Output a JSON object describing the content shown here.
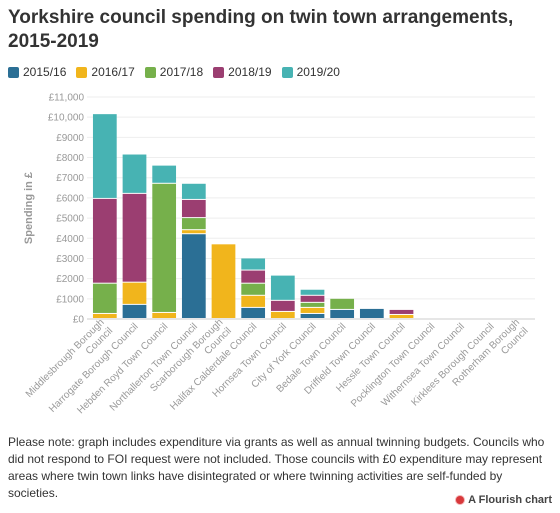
{
  "title": "Yorkshire council spending on twin town arrangements, 2015-2019",
  "note": "Please note: graph includes expenditure via grants as well as annual twinning budgets. Councils who did not respond to FOI request were not included. Those councils with £0 expenditure may represent areas where twin town links have disintegrated or where twinning activities are self-funded by societies.",
  "credit": "A Flourish chart",
  "chart_data": {
    "type": "bar",
    "stacked": true,
    "ylabel": "Spending in £",
    "ylim": [
      0,
      11000
    ],
    "yticks": [
      0,
      1000,
      2000,
      3000,
      4000,
      5000,
      6000,
      7000,
      8000,
      9000,
      10000,
      11000
    ],
    "ytick_labels": [
      "£0",
      "£1000",
      "£2000",
      "£3000",
      "£4000",
      "£5000",
      "£6000",
      "£7000",
      "£8000",
      "£9000",
      "£10,000",
      "£11,000"
    ],
    "grid": true,
    "legend_position": "top-left",
    "categories": [
      "Middlesbrough Borough Council",
      "Harrogate Borough Council",
      "Hebden Royd Town Council",
      "Northallerton Town Council",
      "Scarborough Borough Council",
      "Halifax Calderdale Council",
      "Hornsea Town Council",
      "City of York Council",
      "Bedale Town Council",
      "Driffield Town Council",
      "Hessle Town Council",
      "Pocklington Town Council",
      "Withernsea Town Council",
      "Kirklees Borough Council",
      "Rotherham Borough Council"
    ],
    "category_lines": [
      [
        "Middlesbrough Borough",
        "Council"
      ],
      [
        "Harrogate Borough Council"
      ],
      [
        "Hebden Royd Town Council"
      ],
      [
        "Northallerton Town Council"
      ],
      [
        "Scarborough Borough",
        "Council"
      ],
      [
        "Halifax Calderdale Council"
      ],
      [
        "Hornsea Town Council"
      ],
      [
        "City of York Council"
      ],
      [
        "Bedale Town Council"
      ],
      [
        "Driffield Town Council"
      ],
      [
        "Hessle Town Council"
      ],
      [
        "Pocklington Town Council"
      ],
      [
        "Withernsea Town Council"
      ],
      [
        "Kirklees Borough Council"
      ],
      [
        "Rotherham Borough",
        "Council"
      ]
    ],
    "series": [
      {
        "name": "2015/16",
        "color": "#2b6f95",
        "values": [
          0,
          700,
          0,
          4200,
          0,
          550,
          0,
          250,
          450,
          500,
          0,
          0,
          0,
          0,
          0
        ]
      },
      {
        "name": "2016/17",
        "color": "#f1b51c",
        "values": [
          250,
          1100,
          300,
          200,
          3700,
          600,
          350,
          300,
          0,
          0,
          200,
          0,
          0,
          0,
          0
        ]
      },
      {
        "name": "2017/18",
        "color": "#76b04b",
        "values": [
          1500,
          0,
          6400,
          600,
          0,
          600,
          0,
          250,
          550,
          0,
          0,
          0,
          0,
          0,
          0
        ]
      },
      {
        "name": "2018/19",
        "color": "#9b3e71",
        "values": [
          4200,
          4400,
          0,
          900,
          0,
          650,
          550,
          350,
          0,
          0,
          250,
          0,
          0,
          0,
          0
        ]
      },
      {
        "name": "2019/20",
        "color": "#47b3b3",
        "values": [
          4200,
          1950,
          900,
          800,
          0,
          600,
          1250,
          300,
          0,
          0,
          0,
          0,
          0,
          0,
          0
        ]
      }
    ]
  }
}
